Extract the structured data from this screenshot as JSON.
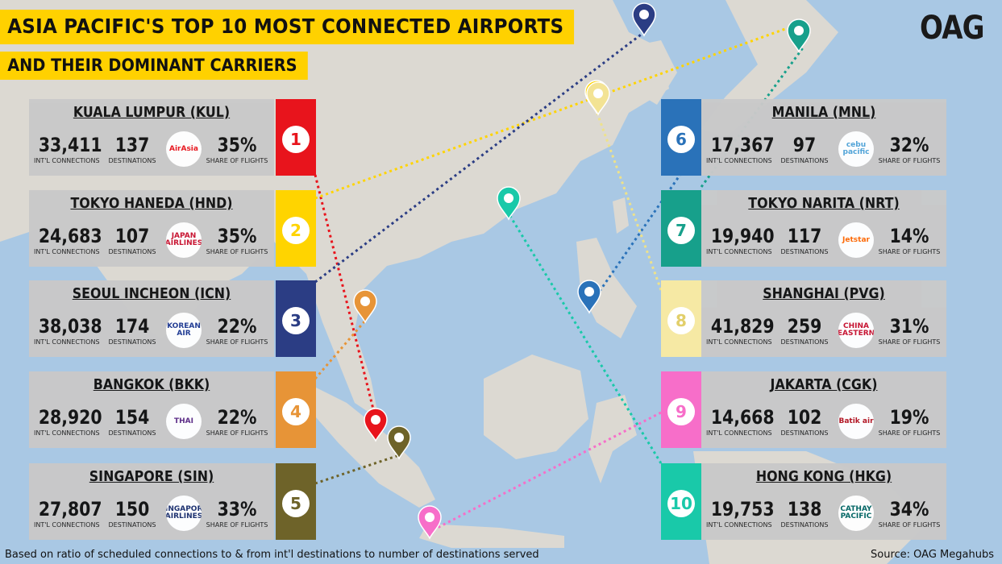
{
  "title": {
    "line1": "ASIA PACIFIC'S TOP 10 MOST CONNECTED AIRPORTS",
    "line2": "AND THEIR DOMINANT CARRIERS"
  },
  "brand": "OAG",
  "labels": {
    "connections": "INT'L CONNECTIONS",
    "destinations": "DESTINATIONS",
    "share": "SHARE OF FLIGHTS"
  },
  "airports": [
    {
      "rank": "1",
      "name": "KUALA LUMPUR (KUL)",
      "connections": "33,411",
      "destinations": "137",
      "share": "35%",
      "carrier": "AirAsia",
      "color": "#e8141c",
      "carrier_color": "#e8141c"
    },
    {
      "rank": "2",
      "name": "TOKYO HANEDA (HND)",
      "connections": "24,683",
      "destinations": "107",
      "share": "35%",
      "carrier": "JAPAN AIRLINES",
      "color": "#ffd400",
      "carrier_color": "#c8102e"
    },
    {
      "rank": "3",
      "name": "SEOUL INCHEON (ICN)",
      "connections": "38,038",
      "destinations": "174",
      "share": "22%",
      "carrier": "KOREAN AIR",
      "color": "#2b3d84",
      "carrier_color": "#1f3a93"
    },
    {
      "rank": "4",
      "name": "BANGKOK (BKK)",
      "connections": "28,920",
      "destinations": "154",
      "share": "22%",
      "carrier": "THAI",
      "color": "#e79437",
      "carrier_color": "#5b2a86"
    },
    {
      "rank": "5",
      "name": "SINGAPORE (SIN)",
      "connections": "27,807",
      "destinations": "150",
      "share": "33%",
      "carrier": "SINGAPORE AIRLINES",
      "color": "#6e6329",
      "carrier_color": "#1b2f6e"
    },
    {
      "rank": "6",
      "name": "MANILA (MNL)",
      "connections": "17,367",
      "destinations": "97",
      "share": "32%",
      "carrier": "cebu pacific",
      "color": "#2a72b9",
      "carrier_color": "#4fa3d8"
    },
    {
      "rank": "7",
      "name": "TOKYO NARITA (NRT)",
      "connections": "19,940",
      "destinations": "117",
      "share": "14%",
      "carrier": "Jetstar",
      "color": "#17a08b",
      "carrier_color": "#ff6600"
    },
    {
      "rank": "8",
      "name": "SHANGHAI (PVG)",
      "connections": "41,829",
      "destinations": "259",
      "share": "31%",
      "carrier": "CHINA EASTERN",
      "color": "#f6e9a4",
      "carrier_color": "#c8102e"
    },
    {
      "rank": "9",
      "name": "JAKARTA (CGK)",
      "connections": "14,668",
      "destinations": "102",
      "share": "19%",
      "carrier": "Batik air",
      "color": "#f76ec9",
      "carrier_color": "#b3121f"
    },
    {
      "rank": "10",
      "name": "HONG KONG (HKG)",
      "connections": "19,753",
      "destinations": "138",
      "share": "34%",
      "carrier": "CATHAY PACIFIC",
      "color": "#19c9a9",
      "carrier_color": "#006564"
    }
  ],
  "footer": {
    "note": "Based on ratio of scheduled connections to & from int'l destinations to number of destinations served",
    "source": "Source: OAG Megahubs"
  },
  "map": {
    "sea_color": "#a9c8e4",
    "land_color": "#dcd9d2"
  }
}
